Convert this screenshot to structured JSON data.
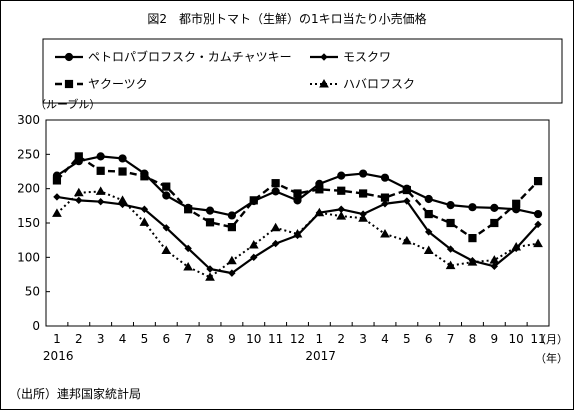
{
  "title": "図2　都市別トマト（生鮮）の1キロ当たり小売価格",
  "source": "（出所）連邦国家統計局",
  "chart_data": {
    "type": "line",
    "ylabel": "（ルーブル）",
    "ylim": [
      0,
      300
    ],
    "yticks": [
      "0",
      "50",
      "100",
      "150",
      "200",
      "250",
      "300"
    ],
    "categories": [
      "1",
      "2",
      "3",
      "4",
      "5",
      "6",
      "7",
      "8",
      "9",
      "10",
      "11",
      "12",
      "1",
      "2",
      "3",
      "4",
      "5",
      "6",
      "7",
      "8",
      "9",
      "10",
      "11"
    ],
    "year_labels": [
      {
        "index": 0,
        "label": "2016"
      },
      {
        "index": 12,
        "label": "2017"
      }
    ],
    "x_unit_month": "（月）",
    "x_unit_year": "（年）",
    "legend_placement": "top",
    "grid": false,
    "series": [
      {
        "name": "ペトロパブロフスク・カムチャツキー",
        "style": "solid-circle",
        "color": "#000000",
        "values": [
          219,
          240,
          247,
          244,
          222,
          190,
          172,
          168,
          161,
          182,
          196,
          183,
          207,
          219,
          222,
          216,
          200,
          185,
          176,
          173,
          172,
          170,
          163
        ]
      },
      {
        "name": "モスクワ",
        "style": "solid-diamond",
        "color": "#000000",
        "values": [
          188,
          183,
          181,
          177,
          170,
          143,
          113,
          83,
          77,
          100,
          120,
          132,
          165,
          170,
          163,
          178,
          182,
          137,
          112,
          95,
          87,
          113,
          148
        ]
      },
      {
        "name": "ヤクーツク",
        "style": "dashed-square",
        "color": "#000000",
        "values": [
          212,
          247,
          226,
          225,
          218,
          203,
          170,
          151,
          144,
          183,
          208,
          193,
          199,
          197,
          193,
          187,
          198,
          163,
          150,
          128,
          150,
          178,
          211
        ]
      },
      {
        "name": "ハバロフスク",
        "style": "dotted-triangle",
        "color": "#000000",
        "values": [
          164,
          194,
          196,
          183,
          151,
          110,
          86,
          71,
          95,
          118,
          143,
          134,
          165,
          160,
          157,
          134,
          124,
          110,
          88,
          93,
          96,
          115,
          120
        ]
      }
    ]
  }
}
